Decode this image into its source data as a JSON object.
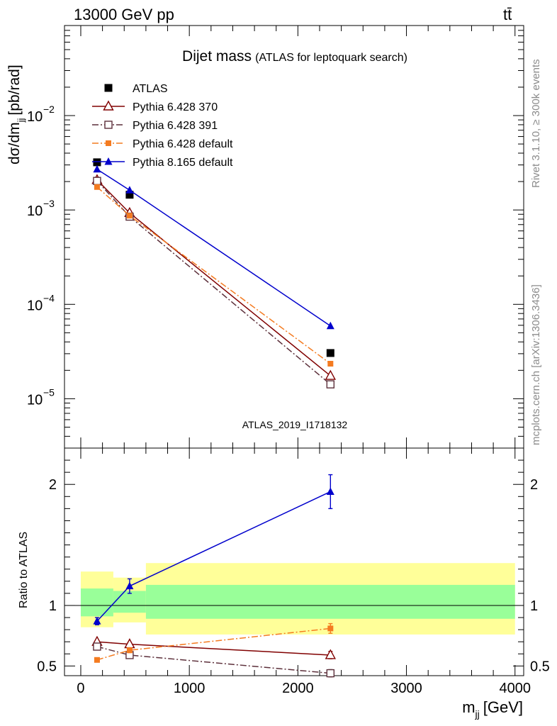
{
  "header": {
    "energy_label": "13000 GeV pp",
    "process_label": "tt̄"
  },
  "side_labels": {
    "rivet": "Rivet 3.1.10, ≥ 300k events",
    "source": "mcplots.cern.ch [arXiv:1306.3436]"
  },
  "chart_data": [
    {
      "type": "line",
      "panel": "main",
      "title": "Dijet mass",
      "subtitle": "(ATLAS for leptoquark search)",
      "ylabel": "dσ/dm",
      "ylabel_sub": "jj",
      "ylabel_unit": "[pb/rad]",
      "yscale": "log",
      "ylim": [
        3e-06,
        0.09
      ],
      "xlim": [
        -150,
        4080
      ],
      "watermark": "ATLAS_2019_I1718132",
      "yticks": [
        {
          "value": 1e-05,
          "base": "10",
          "exp": "−5"
        },
        {
          "value": 0.0001,
          "base": "10",
          "exp": "−4"
        },
        {
          "value": 0.001,
          "base": "10",
          "exp": "−3"
        },
        {
          "value": 0.01,
          "base": "10",
          "exp": "−2"
        }
      ],
      "legend_position": "top-left",
      "series": [
        {
          "name": "ATLAS",
          "color": "#000000",
          "marker": "square",
          "line": "none",
          "x": [
            150,
            450,
            2300
          ],
          "y": [
            0.0032,
            0.00145,
            3.05e-05
          ]
        },
        {
          "name": "Pythia 6.428 370",
          "color": "#800000",
          "marker": "triangle-open",
          "line": "solid",
          "x": [
            150,
            450,
            2300
          ],
          "y": [
            0.00208,
            0.00093,
            1.75e-05
          ]
        },
        {
          "name": "Pythia 6.428 391",
          "color": "#5c2f3a",
          "marker": "square-open",
          "line": "dashdot",
          "x": [
            150,
            450,
            2300
          ],
          "y": [
            0.00203,
            0.00085,
            1.42e-05
          ]
        },
        {
          "name": "Pythia 6.428 default",
          "color": "#f47b20",
          "marker": "square-small",
          "line": "dashdot",
          "x": [
            150,
            450,
            2300
          ],
          "y": [
            0.00175,
            0.00087,
            2.35e-05
          ]
        },
        {
          "name": "Pythia 8.165 default",
          "color": "#0000cc",
          "marker": "triangle",
          "line": "solid",
          "x": [
            150,
            450,
            2300
          ],
          "y": [
            0.0027,
            0.00162,
            5.9e-05
          ]
        }
      ]
    },
    {
      "type": "line",
      "panel": "ratio",
      "ylabel": "Ratio to ATLAS",
      "xlabel": "m",
      "xlabel_sub": "jj",
      "xlabel_unit": "[GeV]",
      "ylim": [
        0.42,
        2.3
      ],
      "xlim": [
        -150,
        4080
      ],
      "xticks": [
        "0",
        "1000",
        "2000",
        "3000",
        "4000"
      ],
      "xtick_values": [
        0,
        1000,
        2000,
        3000,
        4000
      ],
      "yticks": [
        "0.5",
        "1",
        "2"
      ],
      "ytick_values": [
        0.5,
        1,
        2
      ],
      "bands": [
        {
          "x0": 0,
          "x1": 300,
          "inner": [
            0.91,
            1.14
          ],
          "outer": [
            0.82,
            1.28
          ]
        },
        {
          "x0": 300,
          "x1": 600,
          "inner": [
            0.94,
            1.12
          ],
          "outer": [
            0.86,
            1.23
          ]
        },
        {
          "x0": 600,
          "x1": 4000,
          "inner": [
            0.89,
            1.17
          ],
          "outer": [
            0.76,
            1.35
          ]
        }
      ],
      "band_colors": {
        "inner": "#99ff99",
        "outer": "#ffff99"
      },
      "series": [
        {
          "name": "Pythia 6.428 370",
          "color": "#800000",
          "marker": "triangle-open",
          "line": "solid",
          "x": [
            150,
            450,
            2300
          ],
          "y": [
            0.7,
            0.68,
            0.59
          ],
          "err": [
            0,
            0,
            0.03
          ]
        },
        {
          "name": "Pythia 6.428 391",
          "color": "#5c2f3a",
          "marker": "square-open",
          "line": "dashdot",
          "x": [
            150,
            450,
            2300
          ],
          "y": [
            0.66,
            0.59,
            0.44
          ],
          "err": [
            0,
            0,
            0.03
          ]
        },
        {
          "name": "Pythia 6.428 default",
          "color": "#f47b20",
          "marker": "square-small",
          "line": "dashdot",
          "x": [
            150,
            450,
            2300
          ],
          "y": [
            0.55,
            0.63,
            0.81
          ],
          "err": [
            0,
            0.02,
            0.04
          ]
        },
        {
          "name": "Pythia 8.165 default",
          "color": "#0000cc",
          "marker": "triangle",
          "line": "solid",
          "x": [
            150,
            450,
            2300
          ],
          "y": [
            0.87,
            1.16,
            1.94
          ],
          "err": [
            0.03,
            0.06,
            0.14
          ]
        }
      ]
    }
  ]
}
